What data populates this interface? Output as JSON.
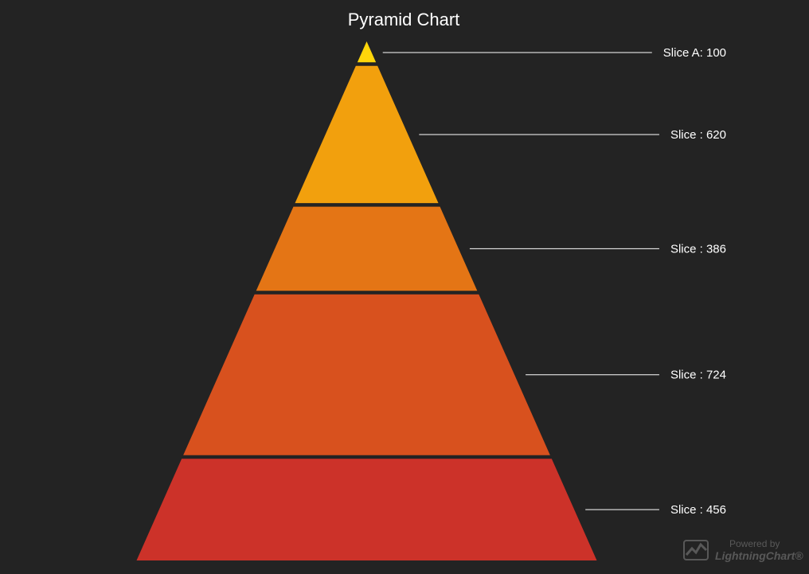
{
  "chart_data": {
    "type": "pyramid",
    "title": "Pyramid Chart",
    "slices": [
      {
        "label": "Slice A: 100",
        "name": "Slice A",
        "value": 100,
        "color": "#FFD60A"
      },
      {
        "label": "Slice : 620",
        "name": "Slice",
        "value": 620,
        "color": "#F2A00D"
      },
      {
        "label": "Slice : 386",
        "name": "Slice",
        "value": 386,
        "color": "#E47515"
      },
      {
        "label": "Slice : 724",
        "name": "Slice",
        "value": 724,
        "color": "#D8511E"
      },
      {
        "label": "Slice : 456",
        "name": "Slice",
        "value": 456,
        "color": "#CC3229"
      }
    ],
    "background": "#232323",
    "label_line_color": "#FFFFFF"
  },
  "watermark": {
    "powered": "Powered by",
    "brand": "LightningChart®"
  }
}
